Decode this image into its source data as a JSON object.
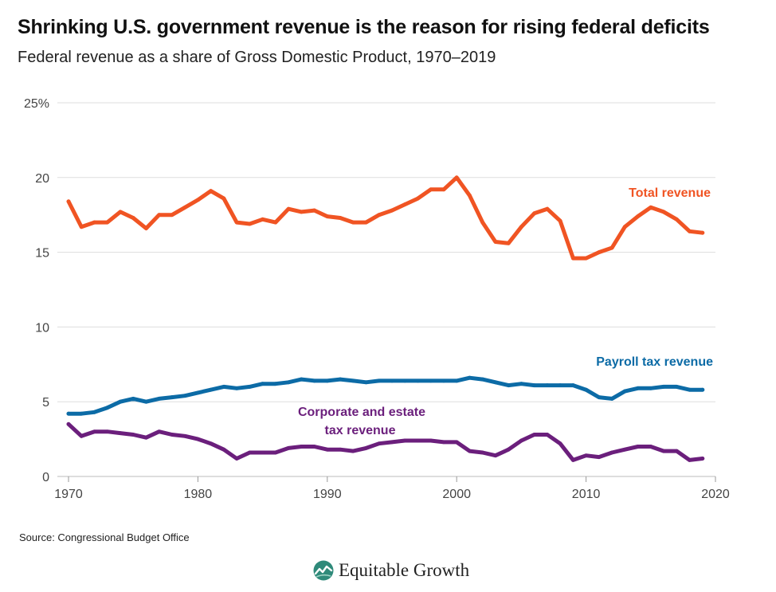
{
  "title": "Shrinking U.S. government revenue is the reason for rising federal deficits",
  "subtitle": "Federal revenue as a share of Gross Domestic Product, 1970–2019",
  "source": "Source: Congressional Budget Office",
  "brand": {
    "name": "Equitable Growth",
    "icon": "equitable-growth-logo-icon"
  },
  "colors": {
    "total": "#f05423",
    "payroll": "#0c6ba6",
    "corporate": "#6b1f7c",
    "grid": "#dddddd"
  },
  "chart_data": {
    "type": "line",
    "title": "Shrinking U.S. government revenue is the reason for rising federal deficits",
    "subtitle": "Federal revenue as a share of Gross Domestic Product, 1970–2019",
    "xlim": [
      1970,
      2020
    ],
    "ylim": [
      0,
      25
    ],
    "x_ticks": [
      1970,
      1980,
      1990,
      2000,
      2010,
      2020
    ],
    "x_tick_labels": [
      "1970",
      "1980",
      "1990",
      "2000",
      "2010",
      "2020"
    ],
    "y_ticks": [
      0,
      5,
      10,
      15,
      20,
      25
    ],
    "y_tick_labels": [
      "0",
      "5",
      "10",
      "15",
      "20",
      "25%"
    ],
    "grid": true,
    "x": [
      1970,
      1971,
      1972,
      1973,
      1974,
      1975,
      1976,
      1977,
      1978,
      1979,
      1980,
      1981,
      1982,
      1983,
      1984,
      1985,
      1986,
      1987,
      1988,
      1989,
      1990,
      1991,
      1992,
      1993,
      1994,
      1995,
      1996,
      1997,
      1998,
      1999,
      2000,
      2001,
      2002,
      2003,
      2004,
      2005,
      2006,
      2007,
      2008,
      2009,
      2010,
      2011,
      2012,
      2013,
      2014,
      2015,
      2016,
      2017,
      2018,
      2019
    ],
    "series": [
      {
        "name": "Total revenue",
        "color": "#f05423",
        "values": [
          18.4,
          16.7,
          17.0,
          17.0,
          17.7,
          17.3,
          16.6,
          17.5,
          17.5,
          18.0,
          18.5,
          19.1,
          18.6,
          17.0,
          16.9,
          17.2,
          17.0,
          17.9,
          17.7,
          17.8,
          17.4,
          17.3,
          17.0,
          17.0,
          17.5,
          17.8,
          18.2,
          18.6,
          19.2,
          19.2,
          20.0,
          18.8,
          17.0,
          15.7,
          15.6,
          16.7,
          17.6,
          17.9,
          17.1,
          14.6,
          14.6,
          15.0,
          15.3,
          16.7,
          17.4,
          18.0,
          17.7,
          17.2,
          16.4,
          16.3
        ]
      },
      {
        "name": "Payroll tax revenue",
        "color": "#0c6ba6",
        "values": [
          4.2,
          4.2,
          4.3,
          4.6,
          5.0,
          5.2,
          5.0,
          5.2,
          5.3,
          5.4,
          5.6,
          5.8,
          6.0,
          5.9,
          6.0,
          6.2,
          6.2,
          6.3,
          6.5,
          6.4,
          6.4,
          6.5,
          6.4,
          6.3,
          6.4,
          6.4,
          6.4,
          6.4,
          6.4,
          6.4,
          6.4,
          6.6,
          6.5,
          6.3,
          6.1,
          6.2,
          6.1,
          6.1,
          6.1,
          6.1,
          5.8,
          5.3,
          5.2,
          5.7,
          5.9,
          5.9,
          6.0,
          6.0,
          5.8,
          5.8
        ]
      },
      {
        "name": "Corporate and estate tax revenue",
        "color": "#6b1f7c",
        "values": [
          3.5,
          2.7,
          3.0,
          3.0,
          2.9,
          2.8,
          2.6,
          3.0,
          2.8,
          2.7,
          2.5,
          2.2,
          1.8,
          1.2,
          1.6,
          1.6,
          1.6,
          1.9,
          2.0,
          2.0,
          1.8,
          1.8,
          1.7,
          1.9,
          2.2,
          2.3,
          2.4,
          2.4,
          2.4,
          2.3,
          2.3,
          1.7,
          1.6,
          1.4,
          1.8,
          2.4,
          2.8,
          2.8,
          2.2,
          1.1,
          1.4,
          1.3,
          1.6,
          1.8,
          2.0,
          2.0,
          1.7,
          1.7,
          1.1,
          1.2
        ]
      }
    ],
    "annotations": [
      {
        "series": "Total revenue",
        "text": "Total revenue"
      },
      {
        "series": "Payroll tax revenue",
        "text": "Payroll tax revenue"
      },
      {
        "series": "Corporate and estate tax revenue",
        "text_lines": [
          "Corporate and estate",
          "tax revenue"
        ]
      }
    ]
  }
}
